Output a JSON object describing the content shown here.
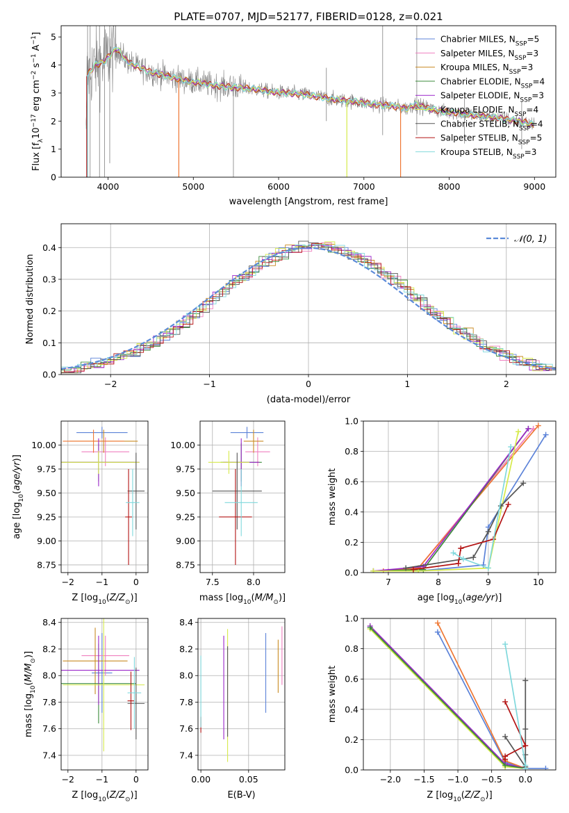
{
  "figure": {
    "title": "PLATE=0707, MJD=52177, FIBERID=0128, z=0.021"
  },
  "colors": {
    "chabrier_miles": "#5b82d8",
    "salpeter_miles": "#ef7fbf",
    "kroupa_miles": "#c98a22",
    "chabrier_elodie": "#3b8a3b",
    "salpeter_elodie": "#9b26c9",
    "kroupa_elodie": "#d6ea4a",
    "chabrier_stelib": "#555555",
    "salpeter_stelib": "#b31313",
    "kroupa_stelib": "#7fd8dc",
    "orange": "#ee7733",
    "data_gray": "#808080",
    "normal_curve": "#5b8ad8"
  },
  "chart_data": [
    {
      "id": "spectrum",
      "type": "line",
      "title": "PLATE=0707, MJD=52177, FIBERID=0128, z=0.021",
      "xlabel": "wavelength [Angstrom, rest frame]",
      "ylabel": "Flux [fλ10⁻¹⁷ erg cm⁻² s⁻¹ A⁻¹]",
      "xlim": [
        3450,
        9250
      ],
      "ylim": [
        0,
        5.4
      ],
      "xticks": [
        4000,
        5000,
        6000,
        7000,
        8000,
        9000
      ],
      "yticks": [
        0,
        1,
        2,
        3,
        4,
        5
      ],
      "legend_position": "top-right",
      "series": [
        {
          "name": "Chabrier MILES, N_SSP=5",
          "color": "#5b82d8"
        },
        {
          "name": "Salpeter MILES, N_SSP=3",
          "color": "#ef7fbf"
        },
        {
          "name": "Kroupa MILES, N_SSP=3",
          "color": "#c98a22"
        },
        {
          "name": "Chabrier ELODIE, N_SSP=4",
          "color": "#3b8a3b"
        },
        {
          "name": "Salpeter ELODIE, N_SSP=3",
          "color": "#9b26c9"
        },
        {
          "name": "Kroupa ELODIE, N_SSP=4",
          "color": "#d6ea4a"
        },
        {
          "name": "Chabrier STELIB, N_SSP=4",
          "color": "#555555"
        },
        {
          "name": "Salpeter STELIB, N_SSP=5",
          "color": "#b31313"
        },
        {
          "name": "Kroupa STELIB, N_SSP=3",
          "color": "#7fd8dc"
        }
      ],
      "model_continuum": {
        "x": [
          3750,
          3850,
          3950,
          4050,
          4100,
          4200,
          4300,
          4500,
          4700,
          4900,
          5100,
          5300,
          5500,
          5700,
          5900,
          6100,
          6300,
          6500,
          6700,
          6900,
          7100,
          7300,
          7500,
          7600,
          7700,
          7900,
          8100,
          8300,
          8500,
          8700,
          8900,
          9000
        ],
        "y": [
          3.6,
          4.0,
          4.1,
          4.45,
          4.6,
          4.2,
          4.0,
          3.75,
          3.6,
          3.45,
          3.35,
          3.25,
          3.2,
          3.15,
          3.05,
          3.0,
          2.95,
          2.85,
          2.75,
          2.7,
          2.6,
          2.55,
          2.45,
          2.6,
          2.5,
          2.35,
          2.3,
          2.2,
          2.15,
          2.05,
          1.95,
          1.85
        ]
      }
    },
    {
      "id": "residuals",
      "type": "line",
      "xlabel": "(data-model)/error",
      "ylabel": "Normed distribution",
      "xlim": [
        -2.5,
        2.5
      ],
      "ylim": [
        0,
        0.475
      ],
      "xticks": [
        -2,
        -1,
        0,
        1,
        2
      ],
      "yticks": [
        0.0,
        0.1,
        0.2,
        0.3,
        0.4
      ],
      "legend_position": "top-right",
      "grid": true,
      "normal_legend": "𝒩(0, 1)",
      "normal": {
        "mean": 0,
        "sigma": 1
      },
      "hist_bin_width": 0.1
    },
    {
      "id": "age_vs_Z",
      "type": "scatter",
      "xlabel": "Z [log₁₀(Z/Z⊙)]",
      "ylabel": "age  [log₁₀(age/yr)]",
      "xlim": [
        -2.2,
        0.35
      ],
      "ylim": [
        8.67,
        10.25
      ],
      "xticks": [
        -2,
        -1,
        0
      ],
      "yticks": [
        8.75,
        9.0,
        9.25,
        9.5,
        9.75,
        10.0
      ],
      "grid": true,
      "points": [
        {
          "series": "Chabrier MILES",
          "x": -1.0,
          "y": 10.13,
          "xerr": 0.75,
          "yerr": 0.06
        },
        {
          "series": "Salpeter MILES",
          "x": -0.9,
          "y": 9.93,
          "xerr": 0.7,
          "yerr": 0.15
        },
        {
          "series": "Kroupa MILES",
          "x": -0.95,
          "y": 10.04,
          "xerr": 1.0,
          "yerr": 0.12
        },
        {
          "series": "Kroupa MILES (orange)",
          "x": -1.25,
          "y": 10.04,
          "xerr": 0.9,
          "yerr": 0.12
        },
        {
          "series": "Chabrier ELODIE",
          "x": -1.1,
          "y": 9.82,
          "xerr": 1.1,
          "yerr": 0.2
        },
        {
          "series": "Salpeter ELODIE",
          "x": -1.1,
          "y": 9.82,
          "xerr": 1.2,
          "yerr": 0.25
        },
        {
          "series": "Kroupa ELODIE",
          "x": -1.1,
          "y": 9.82,
          "xerr": 1.2,
          "yerr": 0.12
        },
        {
          "series": "Chabrier STELIB",
          "x": 0.0,
          "y": 9.52,
          "xerr": 0.25,
          "yerr": 0.4
        },
        {
          "series": "Salpeter STELIB",
          "x": -0.22,
          "y": 9.25,
          "xerr": 0.1,
          "yerr": 0.5
        },
        {
          "series": "Kroupa STELIB",
          "x": -0.1,
          "y": 9.4,
          "xerr": 0.2,
          "yerr": 0.35
        }
      ]
    },
    {
      "id": "age_vs_mass",
      "type": "scatter",
      "xlabel": "mass [log₁₀(M/M⊙)]",
      "xlim": [
        7.35,
        8.38
      ],
      "ylim": [
        8.67,
        10.25
      ],
      "xticks": [
        7.5,
        8.0
      ],
      "yticks": [
        8.75,
        9.0,
        9.25,
        9.5,
        9.75,
        10.0
      ],
      "grid": true,
      "points": [
        {
          "series": "Chabrier MILES",
          "x": 7.92,
          "y": 10.13,
          "xerr": 0.2,
          "yerr": 0.06
        },
        {
          "series": "Salpeter MILES",
          "x": 8.05,
          "y": 9.93,
          "xerr": 0.15,
          "yerr": 0.15
        },
        {
          "series": "Kroupa MILES",
          "x": 8.0,
          "y": 10.04,
          "xerr": 0.12,
          "yerr": 0.12
        },
        {
          "series": "Chabrier ELODIE",
          "x": 7.85,
          "y": 9.82,
          "xerr": 0.25,
          "yerr": 0.2
        },
        {
          "series": "Salpeter ELODIE",
          "x": 7.85,
          "y": 9.82,
          "xerr": 0.22,
          "yerr": 0.25
        },
        {
          "series": "Kroupa ELODIE",
          "x": 7.7,
          "y": 9.82,
          "xerr": 0.25,
          "yerr": 0.12
        },
        {
          "series": "Chabrier STELIB",
          "x": 7.8,
          "y": 9.52,
          "xerr": 0.3,
          "yerr": 0.4
        },
        {
          "series": "Salpeter STELIB",
          "x": 7.78,
          "y": 9.25,
          "xerr": 0.2,
          "yerr": 0.5
        },
        {
          "series": "Kroupa STELIB",
          "x": 7.85,
          "y": 9.4,
          "xerr": 0.2,
          "yerr": 0.35
        }
      ]
    },
    {
      "id": "weight_vs_age",
      "type": "line",
      "xlabel": "age  [log₁₀(age/yr)]",
      "ylabel": "mass weight",
      "xlim": [
        6.5,
        10.35
      ],
      "ylim": [
        0,
        1.0
      ],
      "xticks": [
        7,
        8,
        9,
        10
      ],
      "yticks": [
        0.0,
        0.2,
        0.4,
        0.6,
        0.8,
        1.0
      ],
      "grid": true,
      "series": [
        {
          "name": "Chabrier MILES",
          "x": [
            7.6,
            8.9,
            9.0,
            10.15
          ],
          "y": [
            0.01,
            0.05,
            0.3,
            0.91
          ]
        },
        {
          "name": "Salpeter MILES",
          "x": [
            7.0,
            7.6,
            9.9
          ],
          "y": [
            0.01,
            0.03,
            0.95
          ]
        },
        {
          "name": "Kroupa MILES",
          "x": [
            6.9,
            7.6,
            10.0
          ],
          "y": [
            0.01,
            0.03,
            0.97
          ]
        },
        {
          "name": "Chabrier ELODIE",
          "x": [
            6.7,
            7.7,
            9.8
          ],
          "y": [
            0.01,
            0.02,
            0.95
          ]
        },
        {
          "name": "Salpeter ELODIE",
          "x": [
            6.7,
            7.7,
            9.8
          ],
          "y": [
            0.01,
            0.04,
            0.95
          ]
        },
        {
          "name": "Kroupa ELODIE",
          "x": [
            6.7,
            7.6,
            9.0,
            9.6
          ],
          "y": [
            0.01,
            0.01,
            0.03,
            0.93
          ]
        },
        {
          "name": "Chabrier STELIB",
          "x": [
            7.35,
            8.7,
            9.0,
            9.25,
            9.7
          ],
          "y": [
            0.03,
            0.1,
            0.27,
            0.44,
            0.59
          ]
        },
        {
          "name": "Salpeter STELIB",
          "x": [
            7.5,
            8.4,
            8.45,
            9.1,
            9.4
          ],
          "y": [
            0.02,
            0.06,
            0.16,
            0.22,
            0.45
          ]
        },
        {
          "name": "Kroupa STELIB",
          "x": [
            8.3,
            8.5,
            9.0,
            9.45
          ],
          "y": [
            0.13,
            0.09,
            0.03,
            0.83
          ]
        }
      ]
    },
    {
      "id": "mass_vs_Z",
      "type": "scatter",
      "xlabel": "Z [log₁₀(Z/Z⊙)]",
      "ylabel": "mass [log₁₀(M/M⊙)]",
      "xlim": [
        -2.2,
        0.35
      ],
      "ylim": [
        7.29,
        8.43
      ],
      "xticks": [
        -2,
        -1,
        0
      ],
      "yticks": [
        7.4,
        7.6,
        7.8,
        8.0,
        8.2,
        8.4
      ],
      "grid": true,
      "points": [
        {
          "series": "Chabrier MILES",
          "x": -1.0,
          "y": 8.02,
          "xerr": 0.3,
          "yerr": 0.3
        },
        {
          "series": "Salpeter MILES",
          "x": -0.9,
          "y": 8.15,
          "xerr": 0.7,
          "yerr": 0.15
        },
        {
          "series": "Kroupa MILES",
          "x": -1.2,
          "y": 8.11,
          "xerr": 0.95,
          "yerr": 0.25
        },
        {
          "series": "Chabrier ELODIE",
          "x": -1.1,
          "y": 7.94,
          "xerr": 1.1,
          "yerr": 0.3
        },
        {
          "series": "Salpeter ELODIE",
          "x": -1.1,
          "y": 8.04,
          "xerr": 1.2,
          "yerr": 0.26
        },
        {
          "series": "Kroupa ELODIE",
          "x": -0.95,
          "y": 7.93,
          "xerr": 1.2,
          "yerr": 0.5
        },
        {
          "series": "Chabrier STELIB",
          "x": 0.0,
          "y": 7.79,
          "xerr": 0.25,
          "yerr": 0.27
        },
        {
          "series": "Salpeter STELIB",
          "x": -0.15,
          "y": 7.81,
          "xerr": 0.1,
          "yerr": 0.22
        },
        {
          "series": "Kroupa STELIB",
          "x": -0.05,
          "y": 7.87,
          "xerr": 0.2,
          "yerr": 0.27
        }
      ]
    },
    {
      "id": "mass_vs_EBV",
      "type": "scatter",
      "xlabel": "E(B-V)",
      "xlim": [
        -0.003,
        0.088
      ],
      "ylim": [
        7.29,
        8.43
      ],
      "xticks": [
        0.0,
        0.05
      ],
      "yticks": [
        7.4,
        7.6,
        7.8,
        8.0,
        8.2,
        8.4
      ],
      "grid": true,
      "points": [
        {
          "series": "Chabrier MILES",
          "x": 0.068,
          "y": 8.02,
          "yerr": 0.3
        },
        {
          "series": "Salpeter MILES",
          "x": 0.085,
          "y": 8.15,
          "yerr": 0.22
        },
        {
          "series": "Kroupa MILES",
          "x": 0.081,
          "y": 8.07,
          "yerr": 0.2
        },
        {
          "series": "Salpeter ELODIE",
          "x": 0.024,
          "y": 7.91,
          "yerr": 0.39
        },
        {
          "series": "Kroupa ELODIE",
          "x": 0.028,
          "y": 7.85,
          "yerr": 0.5
        },
        {
          "series": "Chabrier STELIB",
          "x": 0.028,
          "y": 7.88,
          "yerr": 0.34
        },
        {
          "series": "Salpeter STELIB",
          "x": 0.0,
          "y": 7.63,
          "yerr": 0.06
        },
        {
          "series": "Kroupa STELIB",
          "x": 0.0,
          "y": 7.88,
          "yerr": 0.27
        }
      ]
    },
    {
      "id": "weight_vs_Z",
      "type": "line",
      "xlabel": "Z [log₁₀(Z/Z⊙)]",
      "ylabel": "mass weight",
      "xlim": [
        -2.4,
        0.45
      ],
      "ylim": [
        0,
        1.0
      ],
      "xticks": [
        -2.0,
        -1.5,
        -1.0,
        -0.5,
        0.0
      ],
      "yticks": [
        0.0,
        0.2,
        0.4,
        0.6,
        0.8,
        1.0
      ],
      "grid": true,
      "series": [
        {
          "name": "Chabrier MILES",
          "x": [
            -1.3,
            -0.3,
            0.0,
            0.3
          ],
          "y": [
            0.91,
            0.05,
            0.01,
            0.01
          ]
        },
        {
          "name": "Kroupa MILES",
          "x": [
            -1.3,
            -0.3,
            0.0
          ],
          "y": [
            0.97,
            0.06,
            0.01
          ]
        },
        {
          "name": "Salpeter ELODIE",
          "x": [
            -2.3,
            -0.3,
            0.0
          ],
          "y": [
            0.95,
            0.04,
            0.01
          ]
        },
        {
          "name": "Kroupa ELODIE",
          "x": [
            -2.3,
            -0.3,
            0.0
          ],
          "y": [
            0.93,
            0.02,
            0.01
          ]
        },
        {
          "name": "Chabrier ELODIE",
          "x": [
            -2.3,
            -0.3,
            0.0
          ],
          "y": [
            0.94,
            0.03,
            0.01
          ]
        },
        {
          "name": "Chabrier STELIB",
          "x": [
            0.0,
            0.0,
            0.0,
            0.0,
            -0.3
          ],
          "y": [
            0.59,
            0.27,
            0.1,
            0.02,
            0.22
          ]
        },
        {
          "name": "Salpeter STELIB",
          "x": [
            -0.3,
            0.0,
            -0.3,
            -0.3
          ],
          "y": [
            0.45,
            0.16,
            0.09,
            0.07
          ]
        },
        {
          "name": "Kroupa STELIB",
          "x": [
            -0.3,
            0.0,
            0.0
          ],
          "y": [
            0.83,
            0.03,
            0.01
          ]
        }
      ]
    }
  ]
}
